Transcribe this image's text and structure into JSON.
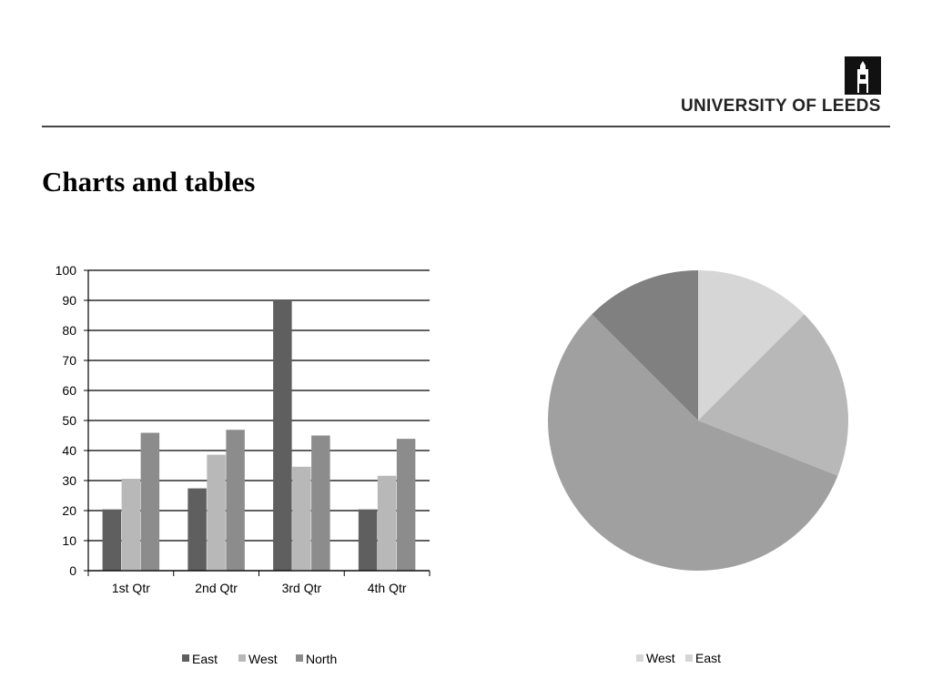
{
  "header": {
    "logo_text": "UNIVERSITY OF LEEDS",
    "title": "Charts and tables"
  },
  "chart_data": [
    {
      "type": "bar",
      "categories": [
        "1st Qtr",
        "2nd Qtr",
        "3rd Qtr",
        "4th Qtr"
      ],
      "series": [
        {
          "name": "East",
          "values": [
            20.4,
            27.4,
            90,
            20.4
          ],
          "color": "#5f5f5f"
        },
        {
          "name": "West",
          "values": [
            30.6,
            38.6,
            34.6,
            31.6
          ],
          "color": "#b8b8b8"
        },
        {
          "name": "North",
          "values": [
            45.9,
            46.9,
            45,
            43.9
          ],
          "color": "#8c8c8c"
        }
      ],
      "ylim": [
        0,
        100
      ],
      "yticks": [
        0,
        10,
        20,
        30,
        40,
        50,
        60,
        70,
        80,
        90,
        100
      ],
      "grid": true,
      "legend": "bottom"
    },
    {
      "type": "pie",
      "slices": [
        {
          "value": 12.5,
          "color": "#d6d6d6"
        },
        {
          "value": 18.5,
          "color": "#b8b8b8"
        },
        {
          "value": 56.5,
          "color": "#a0a0a0"
        },
        {
          "value": 12.5,
          "color": "#808080"
        }
      ],
      "legend_entries": [
        {
          "name": "West",
          "color": "#d6d6d6"
        },
        {
          "name": "East",
          "color": "#d6d6d6"
        }
      ],
      "legend": "bottom"
    }
  ]
}
